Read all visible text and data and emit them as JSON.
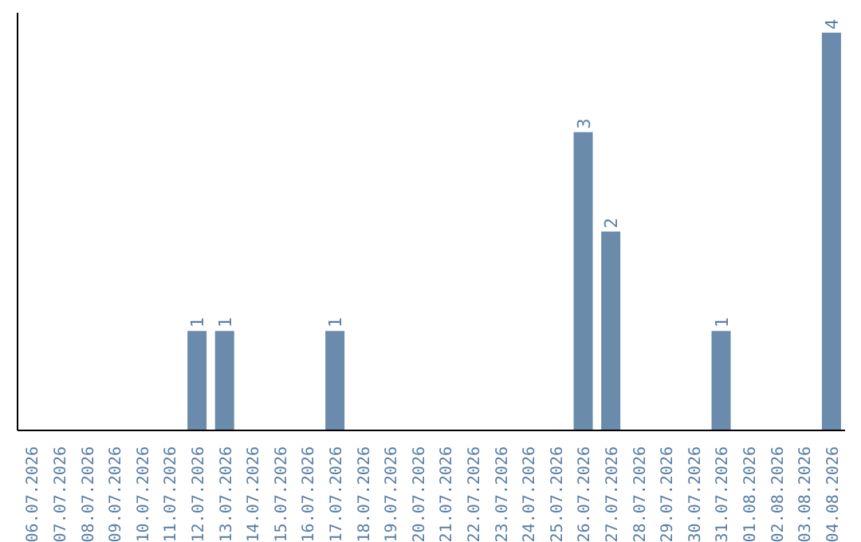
{
  "chart_data": {
    "type": "bar",
    "categories": [
      "06.07.2026",
      "07.07.2026",
      "08.07.2026",
      "09.07.2026",
      "10.07.2026",
      "11.07.2026",
      "12.07.2026",
      "13.07.2026",
      "14.07.2026",
      "15.07.2026",
      "16.07.2026",
      "17.07.2026",
      "18.07.2026",
      "19.07.2026",
      "20.07.2026",
      "21.07.2026",
      "22.07.2026",
      "23.07.2026",
      "24.07.2026",
      "25.07.2026",
      "26.07.2026",
      "27.07.2026",
      "28.07.2026",
      "29.07.2026",
      "30.07.2026",
      "31.07.2026",
      "01.08.2026",
      "02.08.2026",
      "03.08.2026",
      "04.08.2026"
    ],
    "values": [
      0,
      0,
      0,
      0,
      0,
      0,
      1,
      1,
      0,
      0,
      0,
      1,
      0,
      0,
      0,
      0,
      0,
      0,
      0,
      0,
      3,
      2,
      0,
      0,
      0,
      1,
      0,
      0,
      0,
      4
    ],
    "value_labels": [
      null,
      null,
      null,
      null,
      null,
      null,
      "1",
      "1",
      null,
      null,
      null,
      "1",
      null,
      null,
      null,
      null,
      null,
      null,
      null,
      null,
      "3",
      "2",
      null,
      null,
      null,
      "1",
      null,
      null,
      null,
      "4"
    ],
    "color": "#6a8bab",
    "tick_labels": "x",
    "grid": false,
    "legend": false
  }
}
